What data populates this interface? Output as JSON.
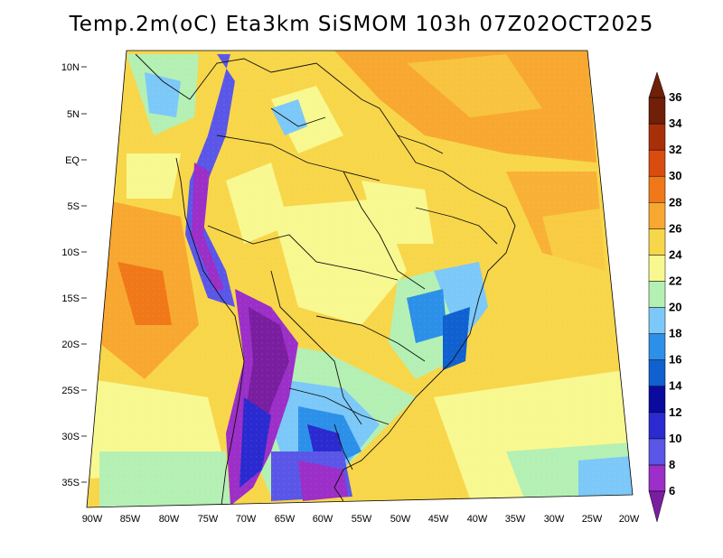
{
  "title": "Temp.2m(oC) Eta3km SiSMOM 103h 07Z02OCT2025",
  "lat_ticks": [
    "10N",
    "5N",
    "EQ",
    "5S",
    "10S",
    "15S",
    "20S",
    "25S",
    "30S",
    "35S"
  ],
  "lon_ticks": [
    "90W",
    "85W",
    "80W",
    "75W",
    "70W",
    "65W",
    "60W",
    "55W",
    "50W",
    "45W",
    "40W",
    "35W",
    "30W",
    "25W",
    "20W"
  ],
  "colorbar": {
    "labels": [
      "6",
      "8",
      "10",
      "12",
      "14",
      "16",
      "18",
      "20",
      "22",
      "24",
      "26",
      "28",
      "30",
      "32",
      "34",
      "36"
    ],
    "colors": [
      "#7a1ea0",
      "#9b2fc8",
      "#5a56e8",
      "#2a2ad0",
      "#0a0a9e",
      "#1060d0",
      "#2c90e8",
      "#7cc8f8",
      "#b4f0b4",
      "#f8f890",
      "#f8d64a",
      "#f8a830",
      "#f07818",
      "#d84c10",
      "#a83008",
      "#702008"
    ]
  },
  "legend_label_unit": "oC"
}
